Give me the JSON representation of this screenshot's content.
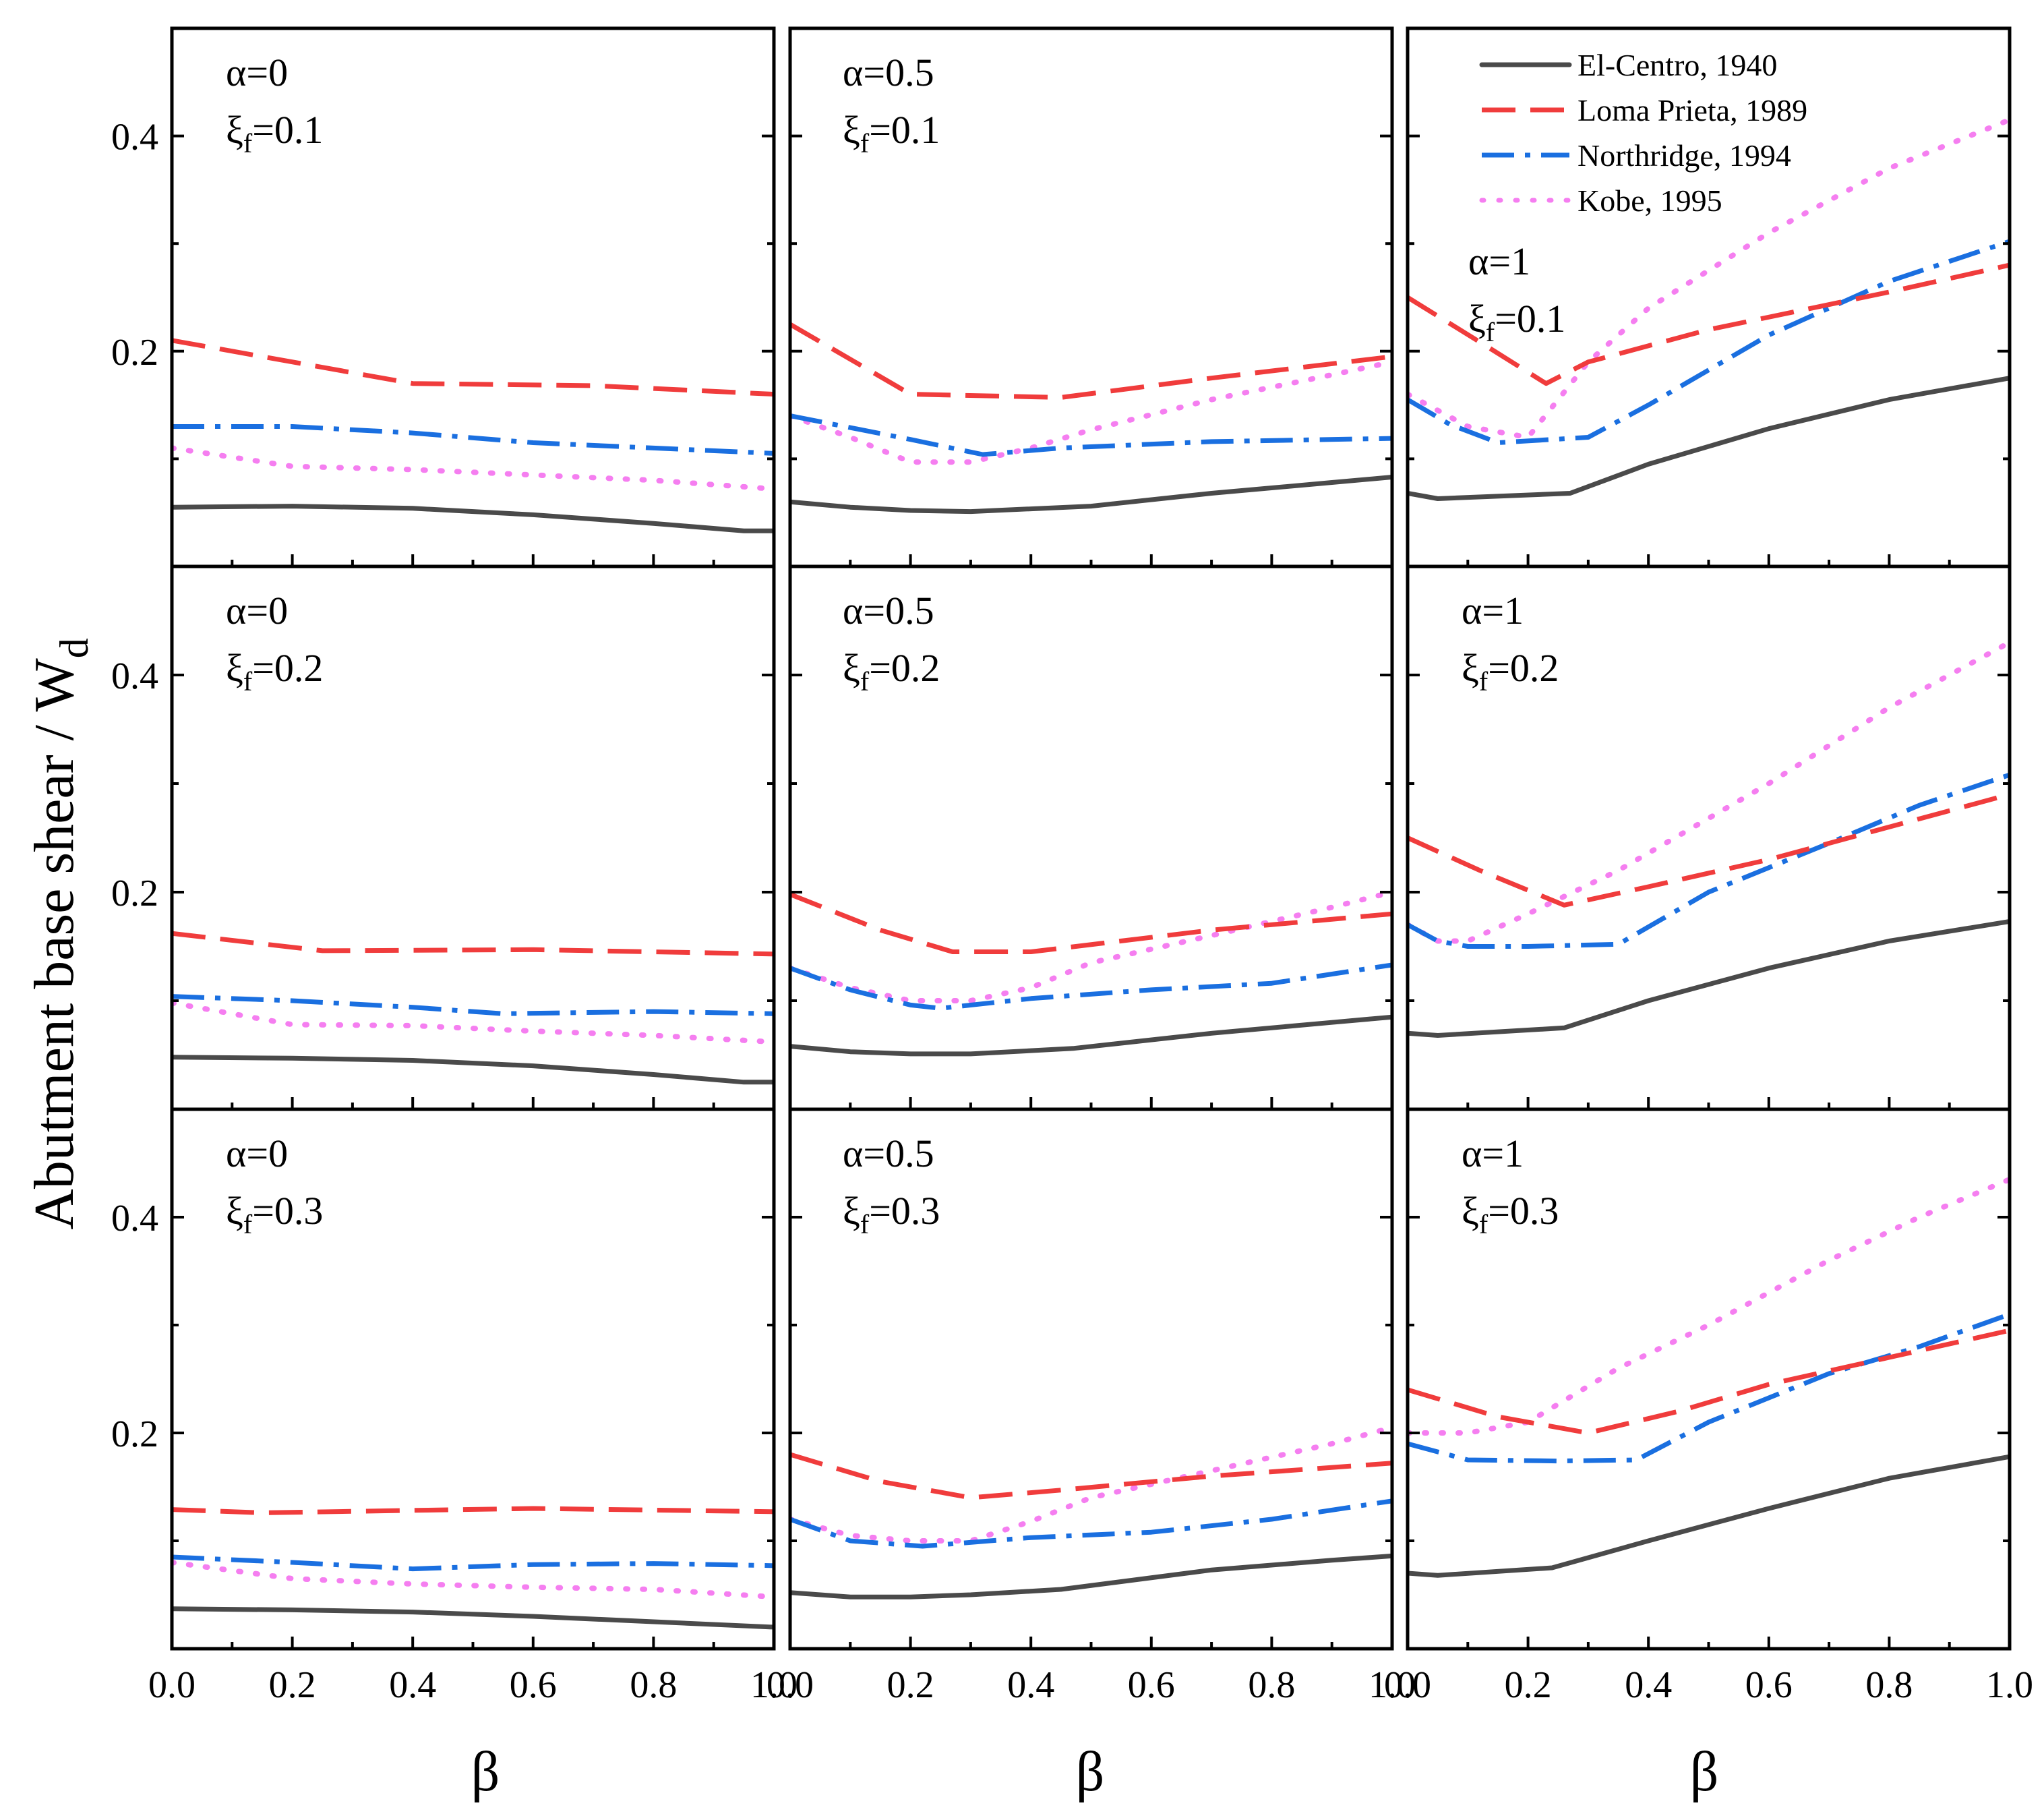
{
  "y_axis_label": "Abutment base shear / W",
  "y_axis_label_sub": "d",
  "x_axis_label": "β",
  "alpha_prefix": "α=",
  "xi_symbol": "ξ",
  "xi_sub": "f",
  "xi_eq": "=",
  "colors": {
    "El-Centro": "#4a4a4a",
    "Loma Prieta": "#f03c3c",
    "Northridge": "#1a6fe0",
    "Kobe": "#f57ef0"
  },
  "legend": [
    {
      "key": "El-Centro",
      "label": "El-Centro, 1940",
      "style": "solid"
    },
    {
      "key": "Loma Prieta",
      "label": "Loma Prieta, 1989",
      "style": "dash"
    },
    {
      "key": "Northridge",
      "label": "Northridge, 1994",
      "style": "dashdot"
    },
    {
      "key": "Kobe",
      "label": "Kobe, 1995",
      "style": "dot"
    }
  ],
  "chart_data": [
    {
      "type": "line",
      "alpha": "0",
      "xi_f": "0.1",
      "xlim": [
        0,
        1
      ],
      "ylim": [
        0,
        0.5
      ],
      "xticks": [
        "0.0",
        "0.2",
        "0.4",
        "0.6",
        "0.8",
        "1.0"
      ],
      "yticks": [
        "0.2",
        "0.4"
      ],
      "series": [
        {
          "name": "El-Centro",
          "x": [
            0,
            0.2,
            0.4,
            0.6,
            0.8,
            0.95,
            1.0
          ],
          "y": [
            0.055,
            0.056,
            0.054,
            0.048,
            0.04,
            0.033,
            0.033
          ]
        },
        {
          "name": "Loma Prieta",
          "x": [
            0,
            0.4,
            0.7,
            1.0
          ],
          "y": [
            0.21,
            0.17,
            0.168,
            0.16
          ]
        },
        {
          "name": "Northridge",
          "x": [
            0,
            0.2,
            0.4,
            0.6,
            0.8,
            1.0
          ],
          "y": [
            0.13,
            0.13,
            0.124,
            0.115,
            0.11,
            0.105
          ]
        },
        {
          "name": "Kobe",
          "x": [
            0,
            0.2,
            0.4,
            0.6,
            0.8,
            1.0
          ],
          "y": [
            0.11,
            0.093,
            0.09,
            0.085,
            0.08,
            0.072
          ]
        }
      ]
    },
    {
      "type": "line",
      "alpha": "0.5",
      "xi_f": "0.1",
      "xlim": [
        0,
        1
      ],
      "ylim": [
        0,
        0.5
      ],
      "xticks": [
        "0.0",
        "0.2",
        "0.4",
        "0.6",
        "0.8",
        "1.0"
      ],
      "yticks": [
        "0.2",
        "0.4"
      ],
      "series": [
        {
          "name": "El-Centro",
          "x": [
            0,
            0.1,
            0.2,
            0.3,
            0.5,
            0.7,
            0.9,
            1.0
          ],
          "y": [
            0.06,
            0.055,
            0.052,
            0.051,
            0.056,
            0.068,
            0.078,
            0.083
          ]
        },
        {
          "name": "Loma Prieta",
          "x": [
            0,
            0.2,
            0.45,
            0.7,
            1.0
          ],
          "y": [
            0.225,
            0.16,
            0.157,
            0.175,
            0.195
          ]
        },
        {
          "name": "Northridge",
          "x": [
            0,
            0.2,
            0.32,
            0.45,
            0.7,
            1.0
          ],
          "y": [
            0.14,
            0.118,
            0.104,
            0.11,
            0.116,
            0.119
          ]
        },
        {
          "name": "Kobe",
          "x": [
            0,
            0.1,
            0.2,
            0.3,
            0.4,
            0.5,
            0.7,
            0.9,
            1.0
          ],
          "y": [
            0.14,
            0.12,
            0.097,
            0.097,
            0.11,
            0.127,
            0.155,
            0.178,
            0.19
          ]
        }
      ]
    },
    {
      "type": "line",
      "alpha": "1",
      "xi_f": "0.1",
      "xlim": [
        0,
        1
      ],
      "ylim": [
        0,
        0.5
      ],
      "xticks": [
        "0.0",
        "0.2",
        "0.4",
        "0.6",
        "0.8",
        "1.0"
      ],
      "yticks": [
        "0.2",
        "0.4"
      ],
      "series": [
        {
          "name": "El-Centro",
          "x": [
            0,
            0.05,
            0.27,
            0.4,
            0.6,
            0.8,
            1.0
          ],
          "y": [
            0.068,
            0.063,
            0.068,
            0.095,
            0.128,
            0.155,
            0.175
          ]
        },
        {
          "name": "Loma Prieta",
          "x": [
            0,
            0.13,
            0.23,
            0.3,
            0.5,
            0.8,
            1.0
          ],
          "y": [
            0.25,
            0.205,
            0.17,
            0.19,
            0.22,
            0.255,
            0.28
          ]
        },
        {
          "name": "Northridge",
          "x": [
            0,
            0.07,
            0.15,
            0.3,
            0.4,
            0.6,
            0.8,
            1.0
          ],
          "y": [
            0.155,
            0.132,
            0.115,
            0.12,
            0.15,
            0.215,
            0.265,
            0.302
          ]
        },
        {
          "name": "Kobe",
          "x": [
            0,
            0.1,
            0.2,
            0.3,
            0.4,
            0.6,
            0.8,
            1.0
          ],
          "y": [
            0.16,
            0.13,
            0.12,
            0.19,
            0.24,
            0.31,
            0.37,
            0.415
          ]
        }
      ]
    },
    {
      "type": "line",
      "alpha": "0",
      "xi_f": "0.2",
      "xlim": [
        0,
        1
      ],
      "ylim": [
        0,
        0.5
      ],
      "xticks": [
        "0.0",
        "0.2",
        "0.4",
        "0.6",
        "0.8",
        "1.0"
      ],
      "yticks": [
        "0.2",
        "0.4"
      ],
      "series": [
        {
          "name": "El-Centro",
          "x": [
            0,
            0.2,
            0.4,
            0.6,
            0.8,
            0.95,
            1.0
          ],
          "y": [
            0.048,
            0.047,
            0.045,
            0.04,
            0.032,
            0.025,
            0.025
          ]
        },
        {
          "name": "Loma Prieta",
          "x": [
            0,
            0.25,
            0.6,
            1.0
          ],
          "y": [
            0.162,
            0.146,
            0.147,
            0.143
          ]
        },
        {
          "name": "Northridge",
          "x": [
            0,
            0.2,
            0.4,
            0.55,
            0.8,
            1.0
          ],
          "y": [
            0.104,
            0.1,
            0.094,
            0.088,
            0.09,
            0.088
          ]
        },
        {
          "name": "Kobe",
          "x": [
            0,
            0.2,
            0.4,
            0.6,
            0.8,
            1.0
          ],
          "y": [
            0.098,
            0.078,
            0.077,
            0.072,
            0.068,
            0.062
          ]
        }
      ]
    },
    {
      "type": "line",
      "alpha": "0.5",
      "xi_f": "0.2",
      "xlim": [
        0,
        1
      ],
      "ylim": [
        0,
        0.5
      ],
      "xticks": [
        "0.0",
        "0.2",
        "0.4",
        "0.6",
        "0.8",
        "1.0"
      ],
      "yticks": [
        "0.2",
        "0.4"
      ],
      "series": [
        {
          "name": "El-Centro",
          "x": [
            0,
            0.1,
            0.2,
            0.3,
            0.47,
            0.7,
            0.9,
            1.0
          ],
          "y": [
            0.058,
            0.053,
            0.051,
            0.051,
            0.056,
            0.07,
            0.08,
            0.085
          ]
        },
        {
          "name": "Loma Prieta",
          "x": [
            0,
            0.15,
            0.27,
            0.4,
            0.7,
            1.0
          ],
          "y": [
            0.198,
            0.165,
            0.145,
            0.145,
            0.165,
            0.18
          ]
        },
        {
          "name": "Northridge",
          "x": [
            0,
            0.1,
            0.2,
            0.25,
            0.4,
            0.6,
            0.8,
            1.0
          ],
          "y": [
            0.13,
            0.11,
            0.096,
            0.093,
            0.102,
            0.11,
            0.116,
            0.133
          ]
        },
        {
          "name": "Kobe",
          "x": [
            0,
            0.1,
            0.2,
            0.3,
            0.4,
            0.5,
            0.7,
            0.9,
            1.0
          ],
          "y": [
            0.13,
            0.112,
            0.1,
            0.1,
            0.112,
            0.135,
            0.16,
            0.186,
            0.2
          ]
        }
      ]
    },
    {
      "type": "line",
      "alpha": "1",
      "xi_f": "0.2",
      "xlim": [
        0,
        1
      ],
      "ylim": [
        0,
        0.5
      ],
      "xticks": [
        "0.0",
        "0.2",
        "0.4",
        "0.6",
        "0.8",
        "1.0"
      ],
      "yticks": [
        "0.2",
        "0.4"
      ],
      "series": [
        {
          "name": "El-Centro",
          "x": [
            0,
            0.05,
            0.26,
            0.4,
            0.6,
            0.8,
            1.0
          ],
          "y": [
            0.07,
            0.068,
            0.075,
            0.1,
            0.13,
            0.155,
            0.173
          ]
        },
        {
          "name": "Loma Prieta",
          "x": [
            0,
            0.12,
            0.26,
            0.4,
            0.6,
            0.8,
            1.0
          ],
          "y": [
            0.25,
            0.22,
            0.188,
            0.205,
            0.23,
            0.26,
            0.29
          ]
        },
        {
          "name": "Northridge",
          "x": [
            0,
            0.05,
            0.1,
            0.2,
            0.35,
            0.5,
            0.7,
            0.85,
            1.0
          ],
          "y": [
            0.17,
            0.155,
            0.15,
            0.15,
            0.152,
            0.2,
            0.245,
            0.28,
            0.308
          ]
        },
        {
          "name": "Kobe",
          "x": [
            0,
            0.05,
            0.1,
            0.2,
            0.35,
            0.6,
            0.8,
            1.0
          ],
          "y": [
            0.17,
            0.155,
            0.155,
            0.18,
            0.22,
            0.3,
            0.37,
            0.43
          ]
        }
      ]
    },
    {
      "type": "line",
      "alpha": "0",
      "xi_f": "0.3",
      "xlim": [
        0,
        1
      ],
      "ylim": [
        0,
        0.5
      ],
      "xticks": [
        "0.0",
        "0.2",
        "0.4",
        "0.6",
        "0.8",
        "1.0"
      ],
      "yticks": [
        "0.2",
        "0.4"
      ],
      "series": [
        {
          "name": "El-Centro",
          "x": [
            0,
            0.2,
            0.4,
            0.6,
            0.8,
            1.0
          ],
          "y": [
            0.037,
            0.036,
            0.034,
            0.03,
            0.025,
            0.02
          ]
        },
        {
          "name": "Loma Prieta",
          "x": [
            0,
            0.15,
            0.6,
            1.0
          ],
          "y": [
            0.129,
            0.126,
            0.13,
            0.127
          ]
        },
        {
          "name": "Northridge",
          "x": [
            0,
            0.2,
            0.4,
            0.6,
            0.8,
            1.0
          ],
          "y": [
            0.085,
            0.08,
            0.074,
            0.078,
            0.079,
            0.077
          ]
        },
        {
          "name": "Kobe",
          "x": [
            0,
            0.2,
            0.4,
            0.6,
            0.8,
            1.0
          ],
          "y": [
            0.08,
            0.065,
            0.06,
            0.057,
            0.055,
            0.048
          ]
        }
      ]
    },
    {
      "type": "line",
      "alpha": "0.5",
      "xi_f": "0.3",
      "xlim": [
        0,
        1
      ],
      "ylim": [
        0,
        0.5
      ],
      "xticks": [
        "0.0",
        "0.2",
        "0.4",
        "0.6",
        "0.8",
        "1.0"
      ],
      "yticks": [
        "0.2",
        "0.4"
      ],
      "series": [
        {
          "name": "El-Centro",
          "x": [
            0,
            0.1,
            0.2,
            0.3,
            0.45,
            0.7,
            0.9,
            1.0
          ],
          "y": [
            0.052,
            0.048,
            0.048,
            0.05,
            0.055,
            0.073,
            0.082,
            0.086
          ]
        },
        {
          "name": "Loma Prieta",
          "x": [
            0,
            0.15,
            0.3,
            0.45,
            0.7,
            1.0
          ],
          "y": [
            0.18,
            0.155,
            0.14,
            0.147,
            0.16,
            0.172
          ]
        },
        {
          "name": "Northridge",
          "x": [
            0,
            0.1,
            0.22,
            0.4,
            0.6,
            0.8,
            1.0
          ],
          "y": [
            0.12,
            0.1,
            0.095,
            0.103,
            0.108,
            0.12,
            0.137
          ]
        },
        {
          "name": "Kobe",
          "x": [
            0,
            0.1,
            0.2,
            0.3,
            0.4,
            0.5,
            0.7,
            0.9,
            1.0
          ],
          "y": [
            0.12,
            0.105,
            0.1,
            0.1,
            0.118,
            0.14,
            0.165,
            0.19,
            0.205
          ]
        }
      ]
    },
    {
      "type": "line",
      "alpha": "1",
      "xi_f": "0.3",
      "xlim": [
        0,
        1
      ],
      "ylim": [
        0,
        0.5
      ],
      "xticks": [
        "0.0",
        "0.2",
        "0.4",
        "0.6",
        "0.8",
        "1.0"
      ],
      "yticks": [
        "0.2",
        "0.4"
      ],
      "series": [
        {
          "name": "El-Centro",
          "x": [
            0,
            0.05,
            0.24,
            0.4,
            0.6,
            0.8,
            1.0
          ],
          "y": [
            0.07,
            0.068,
            0.075,
            0.1,
            0.13,
            0.158,
            0.178
          ]
        },
        {
          "name": "Loma Prieta",
          "x": [
            0,
            0.15,
            0.3,
            0.45,
            0.6,
            0.8,
            1.0
          ],
          "y": [
            0.24,
            0.215,
            0.2,
            0.22,
            0.245,
            0.27,
            0.295
          ]
        },
        {
          "name": "Northridge",
          "x": [
            0,
            0.1,
            0.25,
            0.38,
            0.5,
            0.7,
            0.85,
            1.0
          ],
          "y": [
            0.19,
            0.175,
            0.174,
            0.175,
            0.21,
            0.255,
            0.28,
            0.31
          ]
        },
        {
          "name": "Kobe",
          "x": [
            0,
            0.1,
            0.2,
            0.35,
            0.5,
            0.7,
            0.85,
            1.0
          ],
          "y": [
            0.2,
            0.2,
            0.21,
            0.26,
            0.3,
            0.36,
            0.4,
            0.435
          ]
        }
      ]
    }
  ]
}
